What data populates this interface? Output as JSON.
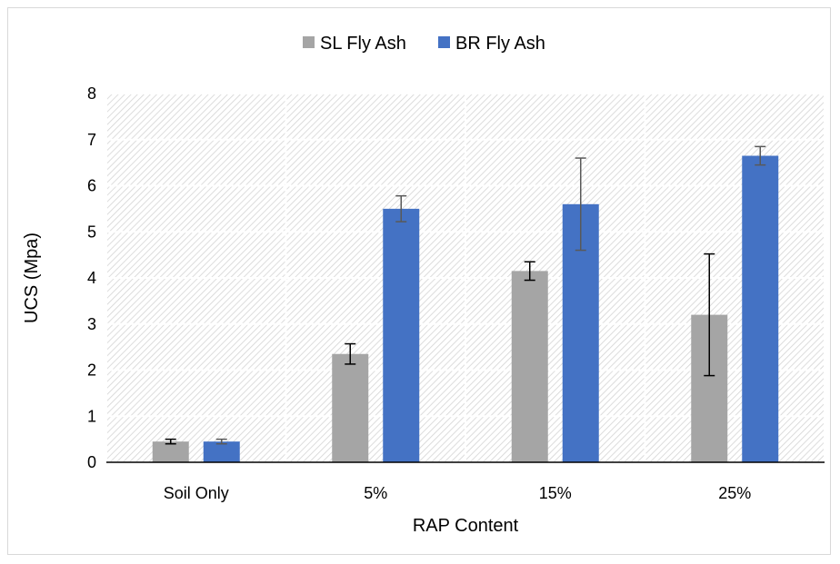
{
  "chart_data": {
    "type": "bar",
    "title": "",
    "xlabel": "RAP Content",
    "ylabel": "UCS (Mpa)",
    "ylim": [
      0,
      8
    ],
    "yticks": [
      "0",
      "1",
      "2",
      "3",
      "4",
      "5",
      "6",
      "7",
      "8"
    ],
    "categories": [
      "Soil Only",
      "5%",
      "15%",
      "25%"
    ],
    "series": [
      {
        "name": "SL Fly Ash",
        "color": "#a5a5a5",
        "errorbar_color": "#000000",
        "values": [
          0.45,
          2.35,
          4.15,
          3.2
        ],
        "errors": [
          0.05,
          0.22,
          0.2,
          1.32
        ]
      },
      {
        "name": "BR Fly Ash",
        "color": "#4472c4",
        "errorbar_color": "#595959",
        "values": [
          0.45,
          5.5,
          5.6,
          6.65
        ],
        "errors": [
          0.05,
          0.28,
          1.0,
          0.2
        ]
      }
    ],
    "legend_position": "top",
    "grid": true,
    "plot_background": "diagonal-hatch"
  }
}
